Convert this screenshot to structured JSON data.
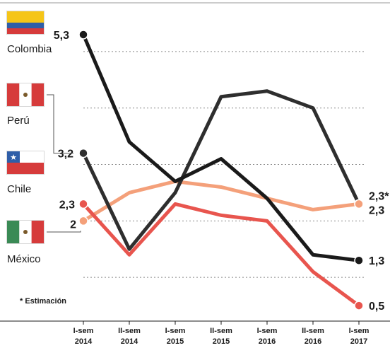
{
  "chart_data": {
    "type": "line",
    "categories": [
      [
        "I-sem",
        "2014"
      ],
      [
        "II-sem",
        "2014"
      ],
      [
        "I-sem",
        "2015"
      ],
      [
        "II-sem",
        "2015"
      ],
      [
        "I-sem",
        "2016"
      ],
      [
        "II-sem",
        "2016"
      ],
      [
        "I-sem",
        "2017"
      ]
    ],
    "series": [
      {
        "name": "Colombia",
        "color": "#1a1a1a",
        "flag": "colombia-flag",
        "values": [
          5.3,
          3.4,
          2.7,
          3.1,
          2.4,
          1.4,
          1.3
        ],
        "start_label": "5,3",
        "end_label": "1,3"
      },
      {
        "name": "Perú",
        "color": "#2e2e2e",
        "flag": "peru-flag",
        "values": [
          3.2,
          1.5,
          2.5,
          4.2,
          4.3,
          4.0,
          2.3
        ],
        "start_label": "3,2",
        "end_label": "2,3*"
      },
      {
        "name": "Chile",
        "color": "#e8554e",
        "flag": "chile-flag",
        "values": [
          2.3,
          1.4,
          2.3,
          2.1,
          2.0,
          1.1,
          0.5
        ],
        "start_label": "2,3",
        "end_label": "0,5"
      },
      {
        "name": "México",
        "color": "#f4a07a",
        "flag": "mexico-flag",
        "values": [
          2.0,
          2.5,
          2.7,
          2.6,
          2.4,
          2.2,
          2.3
        ],
        "start_label": "2",
        "end_label": "2,3"
      }
    ],
    "ylim": [
      0,
      5.6
    ],
    "grid": true,
    "legend": "left",
    "footnote": "* Estimación"
  }
}
